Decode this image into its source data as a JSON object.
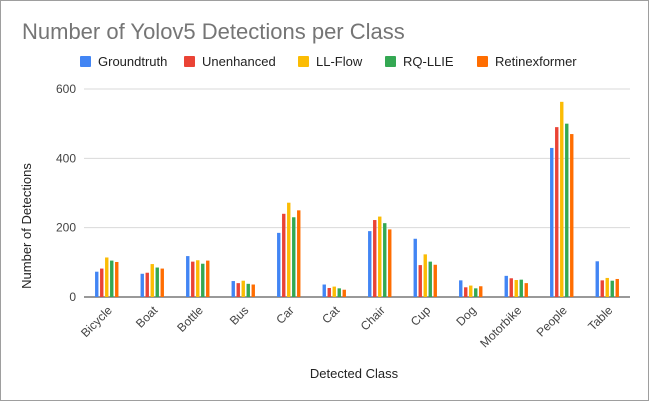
{
  "chart_data": {
    "type": "bar",
    "title": "Number of Yolov5 Detections per Class",
    "xlabel": "Detected Class",
    "ylabel": "Number of Detections",
    "ylim": [
      0,
      600
    ],
    "yticks": [
      0,
      200,
      400,
      600
    ],
    "grid": true,
    "legend_position": "top",
    "categories": [
      "Bicycle",
      "Boat",
      "Bottle",
      "Bus",
      "Car",
      "Cat",
      "Chair",
      "Cup",
      "Dog",
      "Motorbike",
      "People",
      "Table"
    ],
    "series": [
      {
        "name": "Groundtruth",
        "color": "#4285F4",
        "values": [
          73,
          67,
          118,
          46,
          185,
          36,
          190,
          168,
          48,
          61,
          430,
          103
        ]
      },
      {
        "name": "Unenhanced",
        "color": "#EA4335",
        "values": [
          82,
          70,
          102,
          40,
          240,
          26,
          222,
          92,
          28,
          54,
          490,
          48
        ]
      },
      {
        "name": "LL-Flow",
        "color": "#FBBC04",
        "values": [
          114,
          95,
          106,
          47,
          272,
          30,
          232,
          123,
          33,
          49,
          563,
          55
        ]
      },
      {
        "name": "RQ-LLIE",
        "color": "#34A853",
        "values": [
          105,
          85,
          96,
          38,
          230,
          25,
          213,
          102,
          25,
          50,
          500,
          47
        ]
      },
      {
        "name": "Retinexformer",
        "color": "#FF6D01",
        "values": [
          101,
          82,
          105,
          36,
          250,
          21,
          195,
          93,
          31,
          40,
          470,
          52
        ]
      }
    ]
  }
}
